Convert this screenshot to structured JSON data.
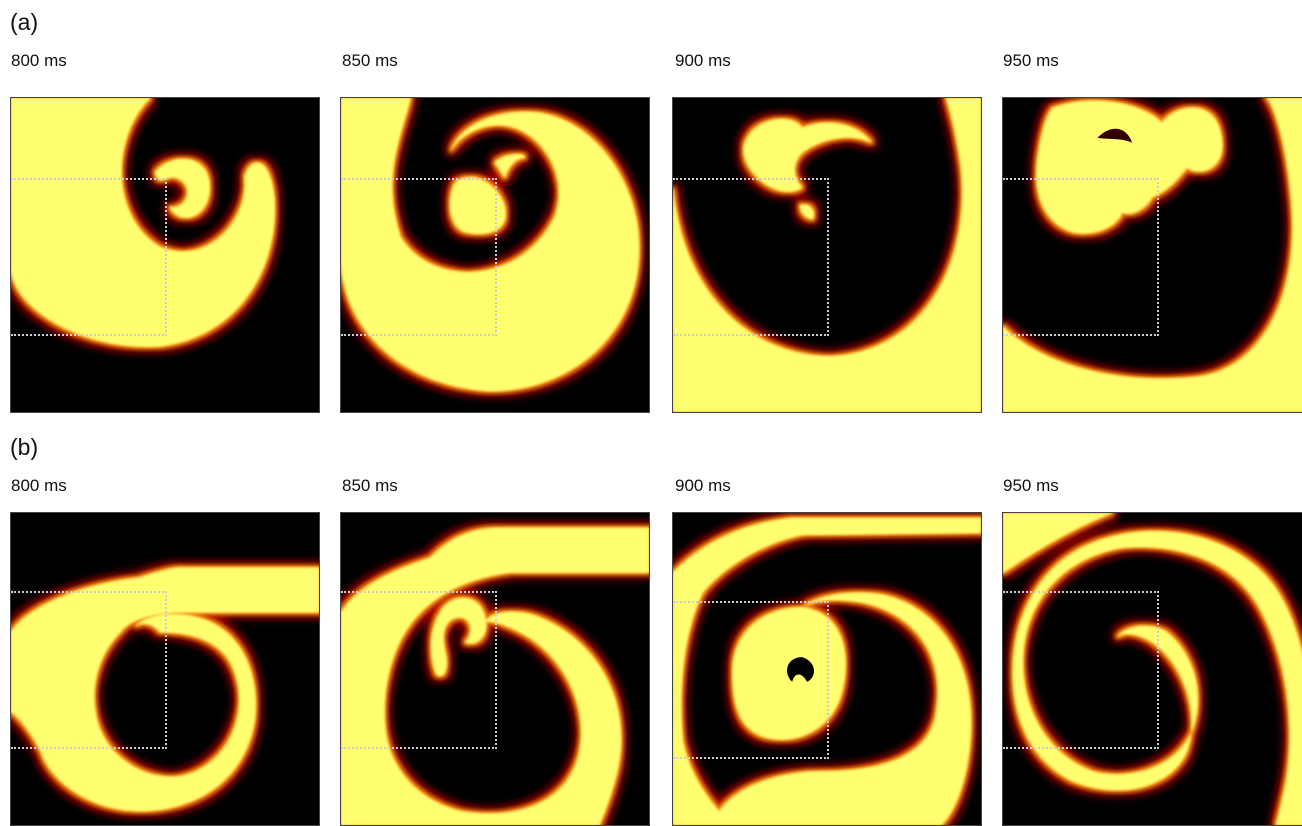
{
  "rows": [
    {
      "label": "(a)",
      "panels": [
        {
          "time": "800 ms"
        },
        {
          "time": "850 ms"
        },
        {
          "time": "900 ms"
        },
        {
          "time": "950 ms"
        }
      ]
    },
    {
      "label": "(b)",
      "panels": [
        {
          "time": "800 ms"
        },
        {
          "time": "850 ms"
        },
        {
          "time": "900 ms"
        },
        {
          "time": "950 ms"
        }
      ]
    }
  ],
  "colors": {
    "background": "#000000",
    "wave_core": "#ffff70",
    "wave_edge": "#ff8800",
    "wave_tail": "#aa0000",
    "roi_border": "#c9cbd6"
  }
}
